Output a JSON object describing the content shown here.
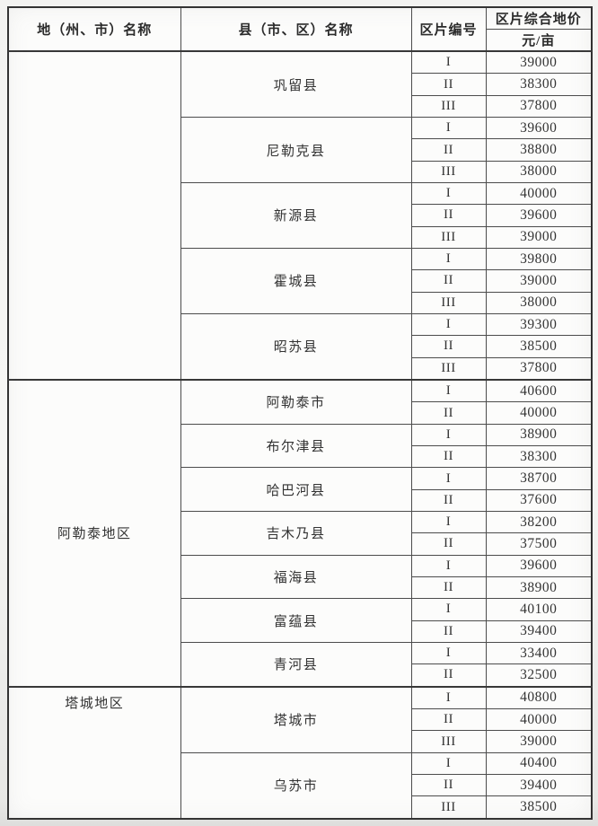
{
  "table": {
    "header": {
      "col1": "地（州、市）名称",
      "col2": "县（市、区）名称",
      "col3": "区片编号",
      "col4_top": "区片综合地价",
      "col4_bottom": "元/亩"
    },
    "groups": [
      {
        "prefecture": "",
        "counties": [
          {
            "name": "巩留县",
            "zones": [
              {
                "no": "I",
                "price": "39000"
              },
              {
                "no": "II",
                "price": "38300"
              },
              {
                "no": "III",
                "price": "37800"
              }
            ]
          },
          {
            "name": "尼勒克县",
            "zones": [
              {
                "no": "I",
                "price": "39600"
              },
              {
                "no": "II",
                "price": "38800"
              },
              {
                "no": "III",
                "price": "38000"
              }
            ]
          },
          {
            "name": "新源县",
            "zones": [
              {
                "no": "I",
                "price": "40000"
              },
              {
                "no": "II",
                "price": "39600"
              },
              {
                "no": "III",
                "price": "39000"
              }
            ]
          },
          {
            "name": "霍城县",
            "zones": [
              {
                "no": "I",
                "price": "39800"
              },
              {
                "no": "II",
                "price": "39000"
              },
              {
                "no": "III",
                "price": "38000"
              }
            ]
          },
          {
            "name": "昭苏县",
            "zones": [
              {
                "no": "I",
                "price": "39300"
              },
              {
                "no": "II",
                "price": "38500"
              },
              {
                "no": "III",
                "price": "37800"
              }
            ]
          }
        ]
      },
      {
        "prefecture": "阿勒泰地区",
        "counties": [
          {
            "name": "阿勒泰市",
            "zones": [
              {
                "no": "I",
                "price": "40600"
              },
              {
                "no": "II",
                "price": "40000"
              }
            ]
          },
          {
            "name": "布尔津县",
            "zones": [
              {
                "no": "I",
                "price": "38900"
              },
              {
                "no": "II",
                "price": "38300"
              }
            ]
          },
          {
            "name": "哈巴河县",
            "zones": [
              {
                "no": "I",
                "price": "38700"
              },
              {
                "no": "II",
                "price": "37600"
              }
            ]
          },
          {
            "name": "吉木乃县",
            "zones": [
              {
                "no": "I",
                "price": "38200"
              },
              {
                "no": "II",
                "price": "37500"
              }
            ]
          },
          {
            "name": "福海县",
            "zones": [
              {
                "no": "I",
                "price": "39600"
              },
              {
                "no": "II",
                "price": "38900"
              }
            ]
          },
          {
            "name": "富蕴县",
            "zones": [
              {
                "no": "I",
                "price": "40100"
              },
              {
                "no": "II",
                "price": "39400"
              }
            ]
          },
          {
            "name": "青河县",
            "zones": [
              {
                "no": "I",
                "price": "33400"
              },
              {
                "no": "II",
                "price": "32500"
              }
            ]
          }
        ]
      },
      {
        "prefecture": "塔城地区",
        "counties": [
          {
            "name": "塔城市",
            "zones": [
              {
                "no": "I",
                "price": "40800"
              },
              {
                "no": "II",
                "price": "40000"
              },
              {
                "no": "III",
                "price": "39000"
              }
            ]
          },
          {
            "name": "乌苏市",
            "zones": [
              {
                "no": "I",
                "price": "40400"
              },
              {
                "no": "II",
                "price": "39400"
              },
              {
                "no": "III",
                "price": "38500"
              }
            ]
          }
        ]
      }
    ]
  }
}
